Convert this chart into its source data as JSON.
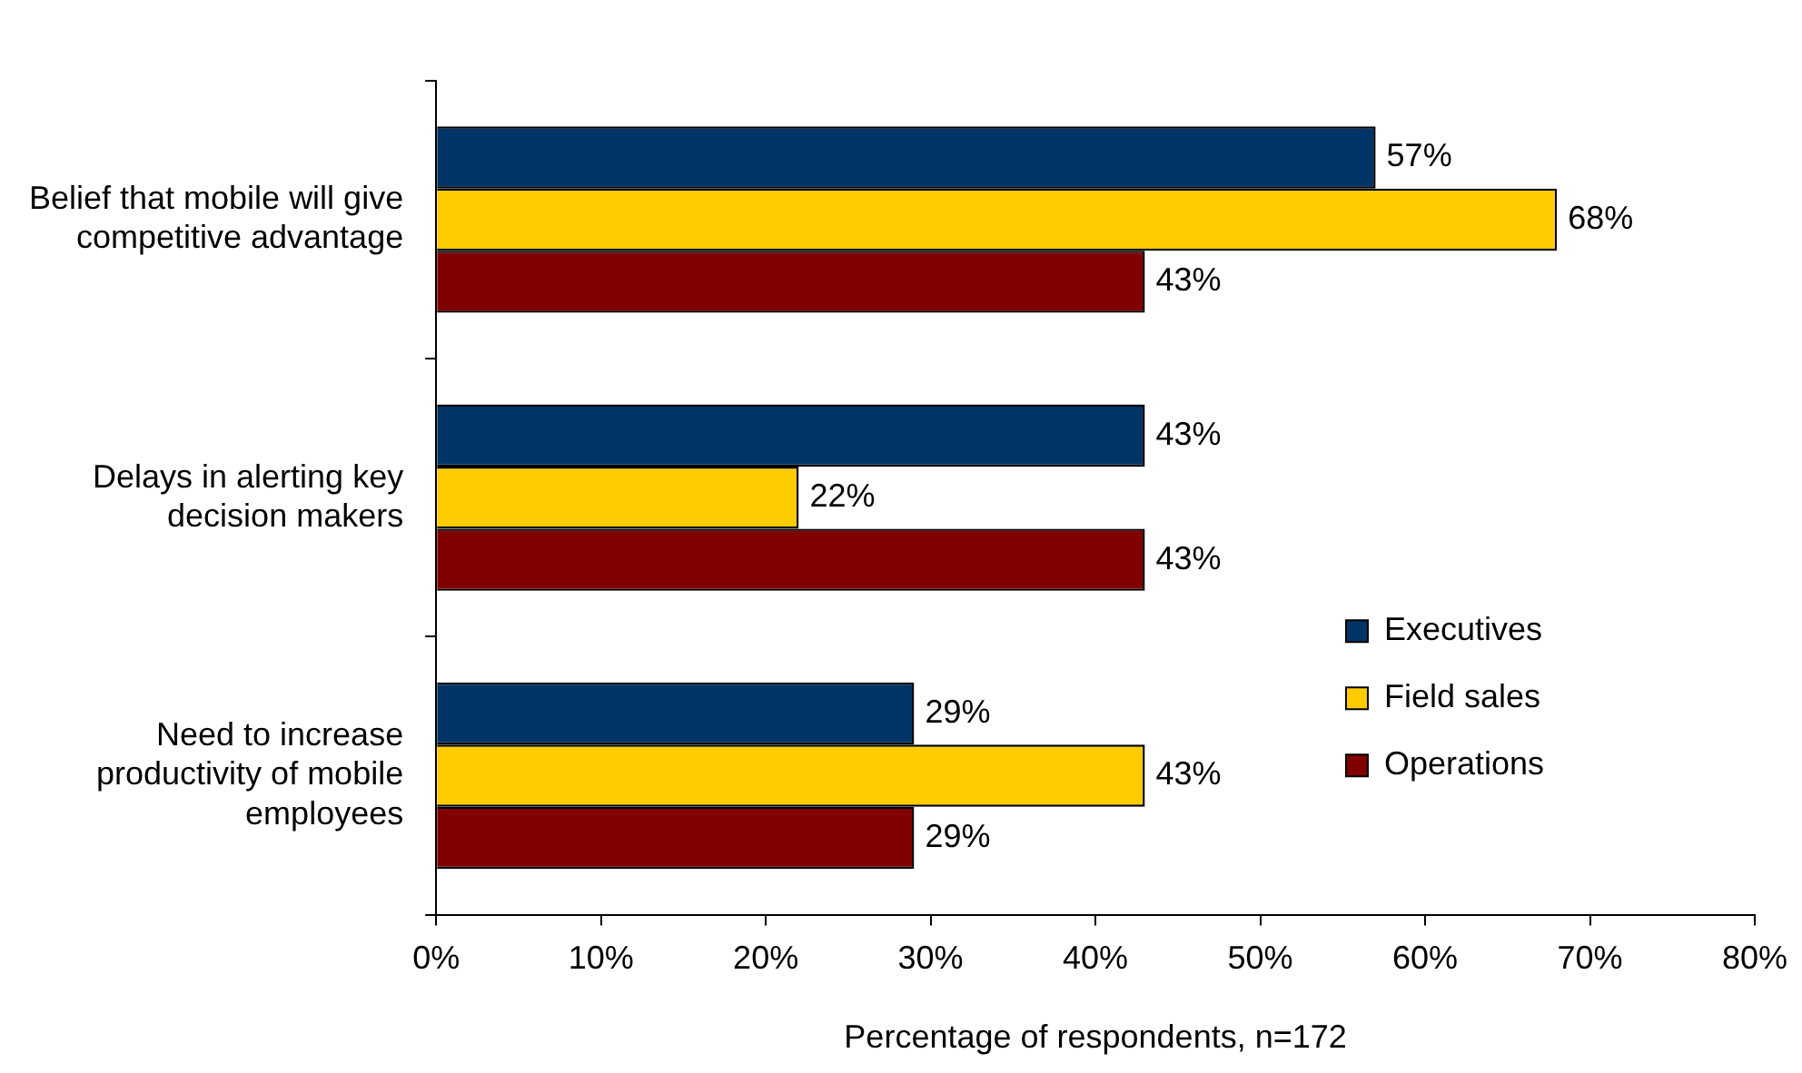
{
  "chart_data": {
    "type": "bar",
    "orientation": "horizontal",
    "categories": [
      "Belief that mobile will give competitive advantage",
      "Delays in alerting key decision makers",
      "Need to increase productivity of mobile employees"
    ],
    "series": [
      {
        "name": "Executives",
        "color": "#003366",
        "values": [
          57,
          43,
          29
        ],
        "value_labels": [
          "57%",
          "43%",
          "29%"
        ]
      },
      {
        "name": "Field sales",
        "color": "#ffcc00",
        "values": [
          68,
          22,
          43
        ],
        "value_labels": [
          "68%",
          "22%",
          "43%"
        ]
      },
      {
        "name": "Operations",
        "color": "#800000",
        "values": [
          43,
          43,
          29
        ],
        "value_labels": [
          "43%",
          "43%",
          "29%"
        ]
      }
    ],
    "xlabel": "Percentage of respondents, n=172",
    "xlim": [
      0,
      80
    ],
    "xticks": [
      {
        "value": 0,
        "label": "0%"
      },
      {
        "value": 10,
        "label": "10%"
      },
      {
        "value": 20,
        "label": "20%"
      },
      {
        "value": 30,
        "label": "30%"
      },
      {
        "value": 40,
        "label": "40%"
      },
      {
        "value": 50,
        "label": "50%"
      },
      {
        "value": 60,
        "label": "60%"
      },
      {
        "value": 70,
        "label": "70%"
      },
      {
        "value": 80,
        "label": "80%"
      }
    ],
    "grid": false,
    "legend": "right"
  }
}
